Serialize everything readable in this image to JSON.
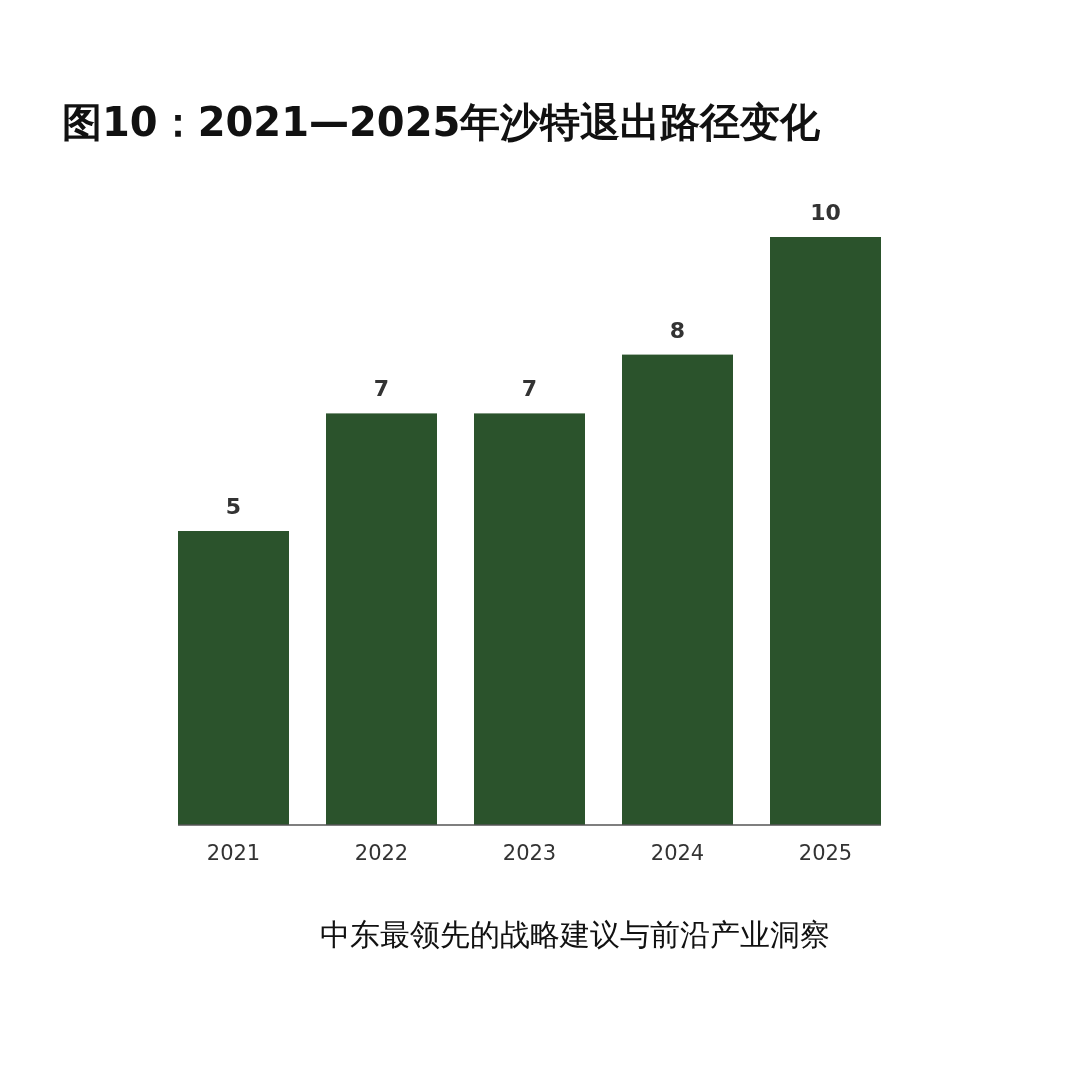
{
  "chart_data": {
    "type": "bar",
    "title": "图10：2021—2025年沙特退出路径变化",
    "categories": [
      "2021",
      "2022",
      "2023",
      "2024",
      "2025"
    ],
    "values": [
      5,
      7,
      7,
      8,
      10
    ],
    "color": "#2b532c",
    "data_labels": true,
    "annotations": [
      "中东最领先的战略建议与前沿产业洞察"
    ]
  }
}
